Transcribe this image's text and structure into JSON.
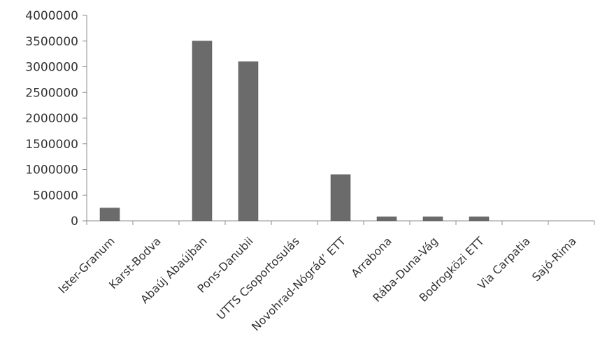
{
  "chart_data": {
    "type": "bar",
    "title": "",
    "xlabel": "",
    "ylabel": "",
    "ylim": [
      0,
      4000000
    ],
    "yticks": [
      0,
      500000,
      1000000,
      1500000,
      2000000,
      2500000,
      3000000,
      3500000,
      4000000
    ],
    "ytick_labels": [
      "0",
      "500000",
      "1000000",
      "1500000",
      "2000000",
      "2500000",
      "3000000",
      "3500000",
      "4000000"
    ],
    "grid": false,
    "legend": "none",
    "bar_color": "#6b6b6b",
    "categories": [
      "Ister-Granum",
      "Karst-Bodva",
      "Abaúj Abaújban",
      "Pons-Danubii",
      "UTTS Csoportosulás",
      "Novohrad-Nógrád’ ETT",
      "Arrabona",
      "Rába-Duna-Vág",
      "Bodrogközi ETT",
      "Via Carpatia",
      "Sajó-Rima"
    ],
    "values": [
      250000,
      0,
      3500000,
      3100000,
      0,
      900000,
      80000,
      80000,
      80000,
      0,
      0
    ]
  }
}
